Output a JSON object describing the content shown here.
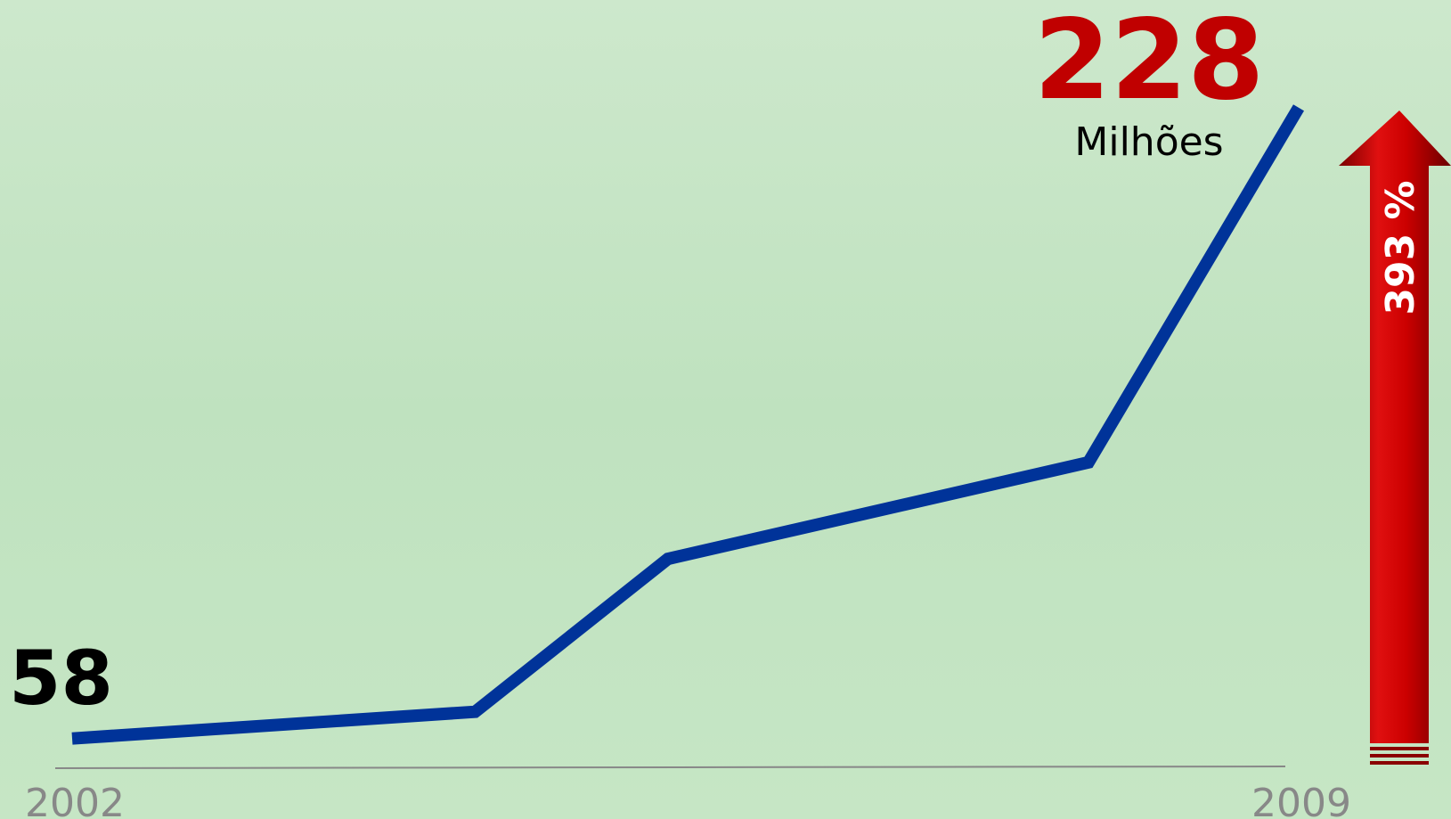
{
  "chart_data": {
    "type": "line",
    "x": [
      2002,
      2004.3,
      2005.4,
      2007.8,
      2009
    ],
    "series": [
      {
        "color": "#003399",
        "values": [
          58,
          65.2,
          106.4,
          132.4,
          228
        ]
      }
    ],
    "xlim": [
      2002,
      2009
    ],
    "xticks": [
      2002,
      2009
    ],
    "ylim": [
      50,
      257
    ],
    "unit_label": "Milhões",
    "growth_label": "393 %"
  }
}
